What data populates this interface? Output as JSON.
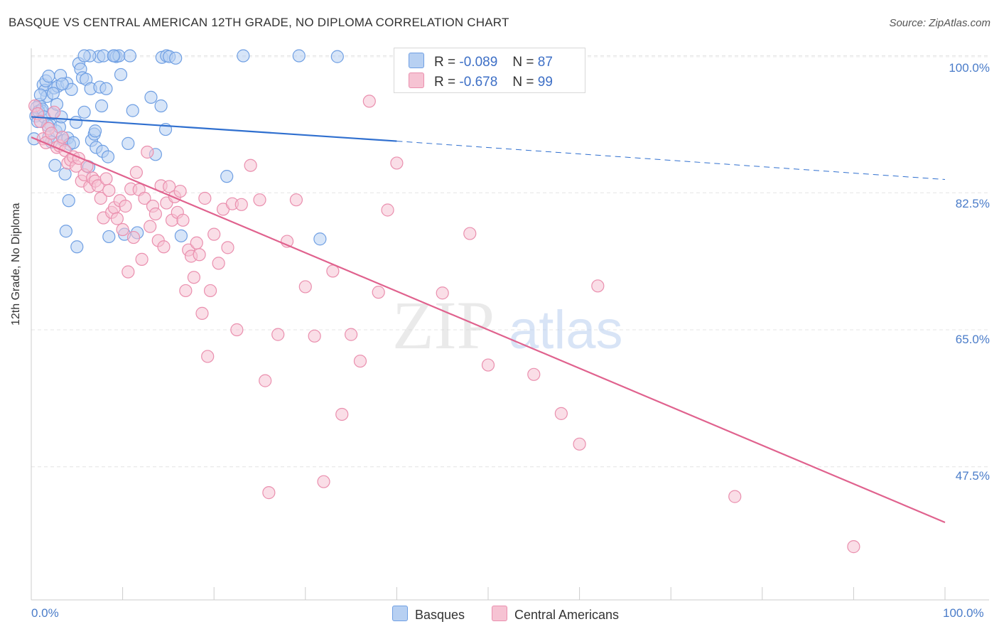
{
  "title": "BASQUE VS CENTRAL AMERICAN 12TH GRADE, NO DIPLOMA CORRELATION CHART",
  "source": "Source: ZipAtlas.com",
  "watermark": {
    "zip": "ZIP",
    "atlas": "atlas"
  },
  "legend": [
    {
      "r_label": "R =",
      "r_value": "-0.089",
      "n_label": "N =",
      "n_value": "87"
    },
    {
      "r_label": "R =",
      "r_value": "-0.678",
      "n_label": "N =",
      "n_value": "99"
    }
  ],
  "bottom_legend": [
    "Basques",
    "Central Americans"
  ],
  "colors": {
    "blue_fill": "#b7d0f2",
    "blue_stroke": "#6f9fe3",
    "blue_line": "#2f6fcf",
    "pink_fill": "#f6c3d3",
    "pink_stroke": "#ea8fae",
    "pink_line": "#e0628e",
    "tick_text": "#4a7cc9"
  },
  "chart_data": {
    "type": "scatter",
    "title": "BASQUE VS CENTRAL AMERICAN 12TH GRADE, NO DIPLOMA CORRELATION CHART",
    "xlabel": "",
    "ylabel": "12th Grade, No Diploma",
    "xlim": [
      0,
      100
    ],
    "ylim": [
      30.5,
      101.5
    ],
    "x_tick_labels": [
      "0.0%",
      "100.0%"
    ],
    "y_tick_labels": [
      "100.0%",
      "82.5%",
      "65.0%",
      "47.5%"
    ],
    "y_ticks": [
      100,
      82.5,
      65,
      47.5
    ],
    "grid": true,
    "legend_position": "top-center",
    "series": [
      {
        "name": "Basques",
        "r": -0.089,
        "n": 87,
        "trend": {
          "x": [
            0,
            40
          ],
          "y": [
            92.2,
            89.1
          ],
          "dashed_to": [
            100,
            84.2
          ]
        },
        "points": [
          [
            0.3,
            89.4
          ],
          [
            0.5,
            92.3
          ],
          [
            0.7,
            91.6
          ],
          [
            0.9,
            93.8
          ],
          [
            1.1,
            93.0
          ],
          [
            1.3,
            96.3
          ],
          [
            1.5,
            95.6
          ],
          [
            1.7,
            94.8
          ],
          [
            1.9,
            89.6
          ],
          [
            2.1,
            91.2
          ],
          [
            2.3,
            92.6
          ],
          [
            2.5,
            95.9
          ],
          [
            2.7,
            90.4
          ],
          [
            2.9,
            96.1
          ],
          [
            1.6,
            96.8
          ],
          [
            1.9,
            97.4
          ],
          [
            2.4,
            95.2
          ],
          [
            3.1,
            90.9
          ],
          [
            3.3,
            92.2
          ],
          [
            3.5,
            89.2
          ],
          [
            3.7,
            84.9
          ],
          [
            3.9,
            96.5
          ],
          [
            4.1,
            81.5
          ],
          [
            4.4,
            95.7
          ],
          [
            0.6,
            93.4
          ],
          [
            0.8,
            92.9
          ],
          [
            1.0,
            95.0
          ],
          [
            1.2,
            93.2
          ],
          [
            1.4,
            92.2
          ],
          [
            1.8,
            91.1
          ],
          [
            2.2,
            89.0
          ],
          [
            2.6,
            86.0
          ],
          [
            2.8,
            93.8
          ],
          [
            3.2,
            97.5
          ],
          [
            3.4,
            96.4
          ],
          [
            3.6,
            89.2
          ],
          [
            3.8,
            77.6
          ],
          [
            4.0,
            89.5
          ],
          [
            4.2,
            88.7
          ],
          [
            4.6,
            88.9
          ],
          [
            4.9,
            91.5
          ],
          [
            5.0,
            75.6
          ],
          [
            5.2,
            99.0
          ],
          [
            5.4,
            98.3
          ],
          [
            5.6,
            97.2
          ],
          [
            5.8,
            92.8
          ],
          [
            6.0,
            97.0
          ],
          [
            6.3,
            85.8
          ],
          [
            6.5,
            95.8
          ],
          [
            6.6,
            89.2
          ],
          [
            6.9,
            90.0
          ],
          [
            7.0,
            90.4
          ],
          [
            7.1,
            88.3
          ],
          [
            7.4,
            99.9
          ],
          [
            7.5,
            96.0
          ],
          [
            7.7,
            93.6
          ],
          [
            7.8,
            87.8
          ],
          [
            7.9,
            100.0
          ],
          [
            8.2,
            95.8
          ],
          [
            8.4,
            87.1
          ],
          [
            8.5,
            76.9
          ],
          [
            9.1,
            100.0
          ],
          [
            9.3,
            99.9
          ],
          [
            9.6,
            100.0
          ],
          [
            9.8,
            97.6
          ],
          [
            10.2,
            77.2
          ],
          [
            10.6,
            88.8
          ],
          [
            10.8,
            100.0
          ],
          [
            11.1,
            93.0
          ],
          [
            11.6,
            77.4
          ],
          [
            13.1,
            94.7
          ],
          [
            13.6,
            87.4
          ],
          [
            14.2,
            93.6
          ],
          [
            14.7,
            90.6
          ],
          [
            14.3,
            99.8
          ],
          [
            14.8,
            100.0
          ],
          [
            15.1,
            99.9
          ],
          [
            15.8,
            99.7
          ],
          [
            16.4,
            77.0
          ],
          [
            21.4,
            84.6
          ],
          [
            23.2,
            100.0
          ],
          [
            29.3,
            100.0
          ],
          [
            31.6,
            76.6
          ],
          [
            33.5,
            99.9
          ],
          [
            6.4,
            100.0
          ],
          [
            5.8,
            100.0
          ],
          [
            9.0,
            100.0
          ]
        ]
      },
      {
        "name": "Central Americans",
        "r": -0.678,
        "n": 99,
        "trend": {
          "x": [
            0,
            100
          ],
          "y": [
            89.6,
            40.4
          ]
        },
        "points": [
          [
            0.4,
            93.6
          ],
          [
            0.7,
            92.6
          ],
          [
            1.0,
            91.6
          ],
          [
            1.3,
            89.4
          ],
          [
            1.6,
            88.9
          ],
          [
            1.9,
            90.7
          ],
          [
            2.2,
            90.1
          ],
          [
            2.5,
            92.8
          ],
          [
            2.8,
            88.3
          ],
          [
            3.1,
            88.5
          ],
          [
            3.4,
            89.6
          ],
          [
            3.7,
            87.9
          ],
          [
            4.0,
            86.3
          ],
          [
            4.3,
            86.7
          ],
          [
            4.6,
            87.1
          ],
          [
            4.9,
            85.9
          ],
          [
            5.2,
            86.9
          ],
          [
            5.5,
            84.0
          ],
          [
            5.8,
            84.8
          ],
          [
            6.1,
            85.9
          ],
          [
            6.4,
            83.3
          ],
          [
            6.7,
            84.4
          ],
          [
            7.0,
            84.0
          ],
          [
            7.3,
            83.4
          ],
          [
            7.6,
            81.8
          ],
          [
            7.9,
            79.3
          ],
          [
            8.2,
            84.3
          ],
          [
            8.5,
            82.8
          ],
          [
            8.8,
            80.0
          ],
          [
            9.1,
            80.6
          ],
          [
            9.4,
            79.2
          ],
          [
            9.7,
            81.5
          ],
          [
            10.0,
            77.8
          ],
          [
            10.3,
            80.8
          ],
          [
            10.6,
            72.4
          ],
          [
            10.9,
            83.0
          ],
          [
            11.2,
            76.8
          ],
          [
            11.5,
            85.1
          ],
          [
            11.8,
            82.9
          ],
          [
            12.1,
            74.0
          ],
          [
            12.4,
            81.8
          ],
          [
            12.7,
            87.7
          ],
          [
            13.0,
            78.2
          ],
          [
            13.3,
            80.8
          ],
          [
            13.6,
            79.8
          ],
          [
            13.9,
            76.4
          ],
          [
            14.2,
            83.4
          ],
          [
            14.5,
            75.6
          ],
          [
            14.8,
            81.2
          ],
          [
            15.1,
            83.3
          ],
          [
            15.4,
            79.0
          ],
          [
            15.7,
            82.0
          ],
          [
            16.0,
            80.0
          ],
          [
            16.3,
            82.7
          ],
          [
            16.6,
            79.0
          ],
          [
            16.9,
            70.0
          ],
          [
            17.2,
            75.2
          ],
          [
            17.5,
            74.4
          ],
          [
            17.8,
            71.7
          ],
          [
            18.1,
            76.1
          ],
          [
            18.4,
            74.6
          ],
          [
            18.7,
            67.1
          ],
          [
            19.0,
            81.8
          ],
          [
            19.3,
            61.6
          ],
          [
            19.6,
            70.0
          ],
          [
            20.0,
            77.2
          ],
          [
            20.5,
            73.5
          ],
          [
            21.0,
            80.4
          ],
          [
            21.5,
            75.5
          ],
          [
            22.0,
            81.1
          ],
          [
            22.5,
            65.0
          ],
          [
            23.0,
            81.0
          ],
          [
            24.0,
            86.0
          ],
          [
            25.0,
            81.6
          ],
          [
            25.6,
            58.5
          ],
          [
            26.0,
            44.2
          ],
          [
            27.0,
            64.4
          ],
          [
            28.0,
            76.3
          ],
          [
            29.0,
            81.6
          ],
          [
            30.0,
            70.5
          ],
          [
            31.0,
            64.2
          ],
          [
            32.0,
            45.6
          ],
          [
            33.0,
            72.5
          ],
          [
            34.0,
            54.2
          ],
          [
            35.0,
            64.4
          ],
          [
            36.0,
            61.0
          ],
          [
            37.0,
            94.2
          ],
          [
            38.0,
            69.8
          ],
          [
            39.0,
            80.3
          ],
          [
            40.0,
            86.3
          ],
          [
            45.0,
            69.7
          ],
          [
            48.0,
            77.3
          ],
          [
            50.0,
            60.5
          ],
          [
            55.0,
            59.3
          ],
          [
            58.0,
            54.3
          ],
          [
            60.0,
            50.4
          ],
          [
            62.0,
            70.6
          ],
          [
            77.0,
            43.7
          ],
          [
            90.0,
            37.3
          ]
        ]
      }
    ]
  }
}
